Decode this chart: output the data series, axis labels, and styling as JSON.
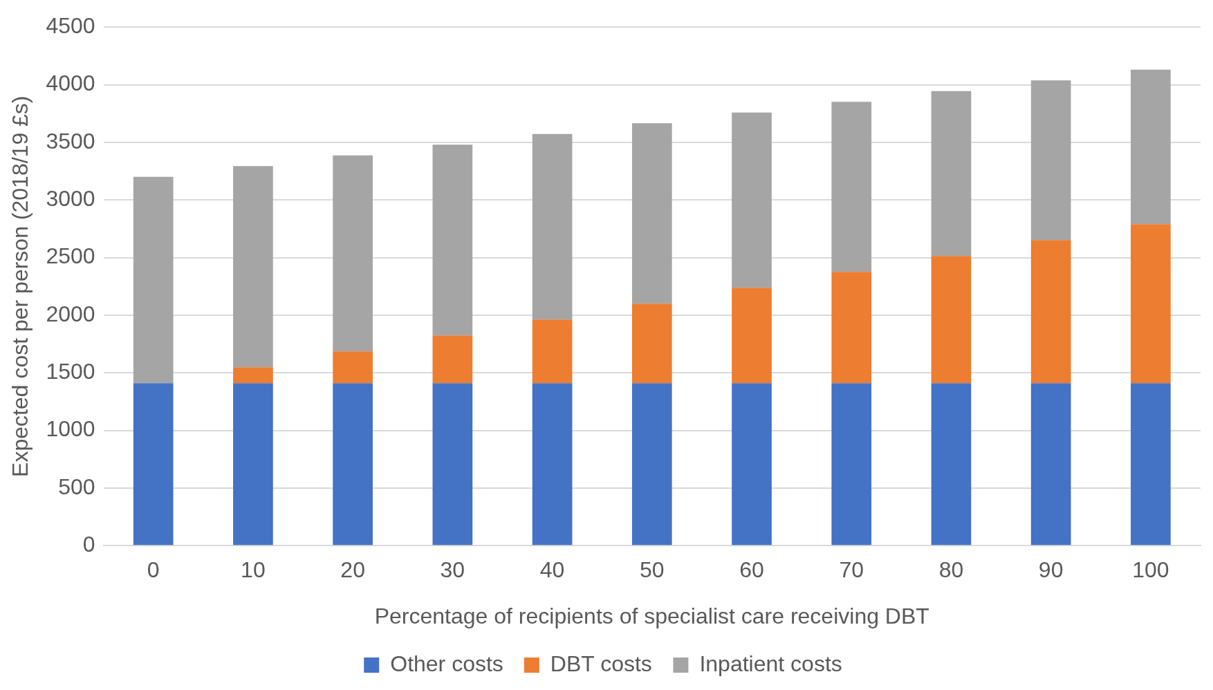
{
  "chart_data": {
    "type": "bar",
    "stacked": true,
    "xlabel": "Percentage of recipients of specialist care receiving DBT",
    "ylabel": "Expected cost per person (2018/19 £s)",
    "categories": [
      "0",
      "10",
      "20",
      "30",
      "40",
      "50",
      "60",
      "70",
      "80",
      "90",
      "100"
    ],
    "series": [
      {
        "name": "Other costs",
        "color": "#4472c4",
        "values": [
          1410,
          1410,
          1410,
          1410,
          1410,
          1410,
          1410,
          1410,
          1410,
          1410,
          1410
        ]
      },
      {
        "name": "DBT costs",
        "color": "#ed7d31",
        "values": [
          0,
          138,
          276,
          414,
          552,
          690,
          828,
          966,
          1104,
          1242,
          1380
        ]
      },
      {
        "name": "Inpatient costs",
        "color": "#a5a5a5",
        "values": [
          1790,
          1745,
          1700,
          1655,
          1610,
          1565,
          1520,
          1475,
          1430,
          1385,
          1340
        ]
      }
    ],
    "ylim": [
      0,
      4500
    ],
    "yticks": [
      0,
      500,
      1000,
      1500,
      2000,
      2500,
      3000,
      3500,
      4000,
      4500
    ],
    "grid": "y",
    "legend": "bottom"
  }
}
